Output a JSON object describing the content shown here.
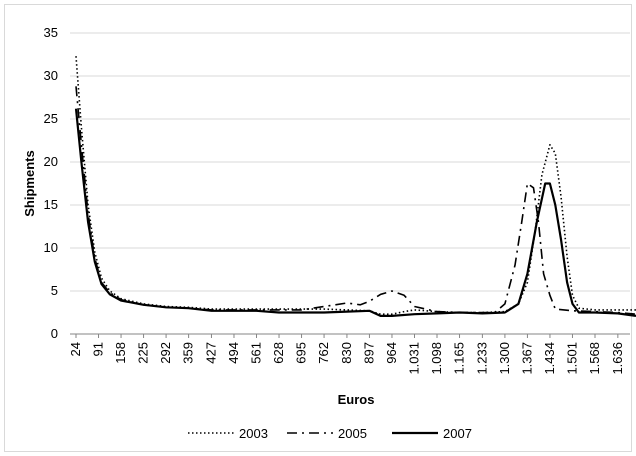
{
  "chart_data": {
    "type": "line",
    "title": "",
    "xlabel": "Euros",
    "ylabel": "Shipments",
    "ylim": [
      0,
      35
    ],
    "yticks": [
      0,
      5,
      10,
      15,
      20,
      25,
      30,
      35
    ],
    "grid": "horizontal",
    "legend_position": "bottom",
    "x_tick_labels": [
      "24",
      "91",
      "158",
      "225",
      "292",
      "359",
      "427",
      "494",
      "561",
      "628",
      "695",
      "762",
      "830",
      "897",
      "964",
      "1.031",
      "1.098",
      "1.165",
      "1.233",
      "1.300",
      "1.367",
      "1.434",
      "1.501",
      "1.568",
      "1.636"
    ],
    "x": [
      24,
      91,
      158,
      225,
      292,
      359,
      427,
      494,
      561,
      628,
      695,
      762,
      830,
      897,
      964,
      1031,
      1098,
      1165,
      1233,
      1300,
      1367,
      1434,
      1501,
      1568,
      1636,
      1690
    ],
    "series": [
      {
        "name": "2003",
        "style": "dotted",
        "points": [
          [
            24,
            32.3
          ],
          [
            40,
            24
          ],
          [
            60,
            15
          ],
          [
            80,
            9.5
          ],
          [
            100,
            6.5
          ],
          [
            125,
            5
          ],
          [
            158,
            4.1
          ],
          [
            225,
            3.5
          ],
          [
            292,
            3.2
          ],
          [
            359,
            3.1
          ],
          [
            427,
            2.9
          ],
          [
            494,
            2.9
          ],
          [
            561,
            2.9
          ],
          [
            628,
            2.9
          ],
          [
            695,
            2.9
          ],
          [
            762,
            2.9
          ],
          [
            830,
            2.8
          ],
          [
            897,
            2.7
          ],
          [
            930,
            2.3
          ],
          [
            964,
            2.3
          ],
          [
            1000,
            2.6
          ],
          [
            1031,
            2.8
          ],
          [
            1098,
            2.6
          ],
          [
            1165,
            2.5
          ],
          [
            1233,
            2.5
          ],
          [
            1300,
            2.6
          ],
          [
            1340,
            3.5
          ],
          [
            1367,
            6
          ],
          [
            1390,
            12
          ],
          [
            1410,
            18.5
          ],
          [
            1434,
            22
          ],
          [
            1450,
            21
          ],
          [
            1467,
            16
          ],
          [
            1485,
            9
          ],
          [
            1501,
            4.5
          ],
          [
            1520,
            3
          ],
          [
            1568,
            2.8
          ],
          [
            1636,
            2.8
          ],
          [
            1690,
            2.8
          ]
        ]
      },
      {
        "name": "2005",
        "style": "dash-dot",
        "points": [
          [
            24,
            28.8
          ],
          [
            40,
            22
          ],
          [
            60,
            14
          ],
          [
            80,
            8.8
          ],
          [
            100,
            6
          ],
          [
            125,
            4.8
          ],
          [
            158,
            4
          ],
          [
            225,
            3.4
          ],
          [
            292,
            3.1
          ],
          [
            359,
            3
          ],
          [
            427,
            2.8
          ],
          [
            494,
            2.8
          ],
          [
            561,
            2.8
          ],
          [
            628,
            2.8
          ],
          [
            695,
            2.8
          ],
          [
            762,
            3.2
          ],
          [
            830,
            3.6
          ],
          [
            870,
            3.4
          ],
          [
            897,
            3.8
          ],
          [
            930,
            4.6
          ],
          [
            964,
            5
          ],
          [
            1000,
            4.5
          ],
          [
            1031,
            3.2
          ],
          [
            1098,
            2.6
          ],
          [
            1165,
            2.5
          ],
          [
            1233,
            2.5
          ],
          [
            1270,
            2.5
          ],
          [
            1300,
            3.5
          ],
          [
            1330,
            8
          ],
          [
            1350,
            13
          ],
          [
            1367,
            17.5
          ],
          [
            1385,
            17
          ],
          [
            1400,
            13
          ],
          [
            1415,
            7
          ],
          [
            1434,
            4.5
          ],
          [
            1450,
            2.9
          ],
          [
            1501,
            2.7
          ],
          [
            1568,
            2.6
          ],
          [
            1636,
            2.5
          ],
          [
            1690,
            2.3
          ]
        ]
      },
      {
        "name": "2007",
        "style": "solid",
        "points": [
          [
            24,
            26.2
          ],
          [
            40,
            20
          ],
          [
            60,
            13
          ],
          [
            80,
            8.4
          ],
          [
            100,
            5.8
          ],
          [
            125,
            4.6
          ],
          [
            158,
            3.9
          ],
          [
            225,
            3.4
          ],
          [
            292,
            3.1
          ],
          [
            359,
            3
          ],
          [
            427,
            2.7
          ],
          [
            494,
            2.7
          ],
          [
            561,
            2.7
          ],
          [
            628,
            2.5
          ],
          [
            695,
            2.5
          ],
          [
            762,
            2.5
          ],
          [
            830,
            2.6
          ],
          [
            897,
            2.7
          ],
          [
            930,
            2.1
          ],
          [
            964,
            2.1
          ],
          [
            1031,
            2.3
          ],
          [
            1098,
            2.4
          ],
          [
            1165,
            2.5
          ],
          [
            1233,
            2.4
          ],
          [
            1300,
            2.5
          ],
          [
            1340,
            3.5
          ],
          [
            1367,
            7
          ],
          [
            1395,
            13
          ],
          [
            1420,
            17.5
          ],
          [
            1434,
            17.5
          ],
          [
            1450,
            15
          ],
          [
            1467,
            11
          ],
          [
            1485,
            6
          ],
          [
            1501,
            3.5
          ],
          [
            1520,
            2.5
          ],
          [
            1568,
            2.5
          ],
          [
            1636,
            2.4
          ],
          [
            1690,
            2.1
          ]
        ]
      }
    ]
  },
  "colors": {
    "line": "#000000",
    "grid": "#d9d9d9",
    "axis": "#868686"
  }
}
